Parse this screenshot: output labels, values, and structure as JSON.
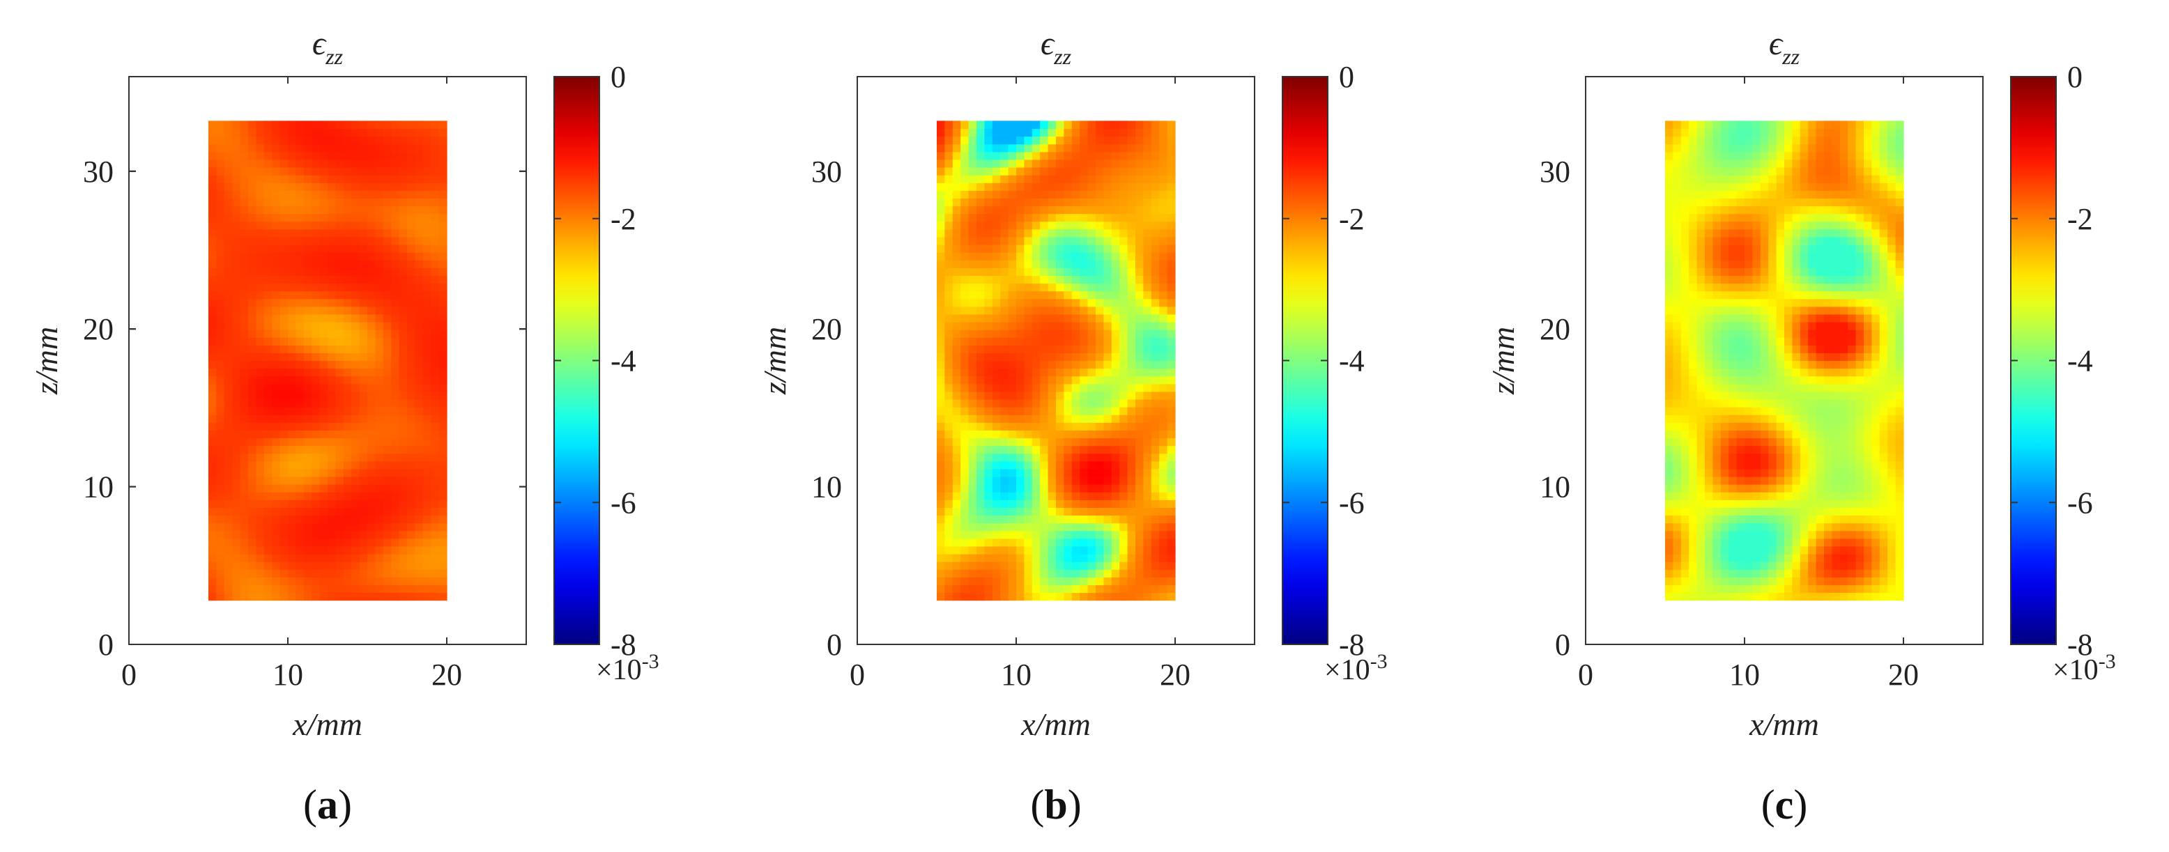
{
  "figure": {
    "panels": [
      {
        "label_open": "(",
        "label_letter": "a",
        "label_close": ")"
      },
      {
        "label_open": "(",
        "label_letter": "b",
        "label_close": ")"
      },
      {
        "label_open": "(",
        "label_letter": "c",
        "label_close": ")"
      }
    ]
  },
  "chart_data": [
    {
      "type": "heatmap",
      "title_symbol": "ϵ",
      "title_subscript": "zz",
      "xlabel": "x/mm",
      "ylabel": "z/mm",
      "xlim": [
        0,
        25
      ],
      "ylim": [
        0,
        36
      ],
      "xticks": [
        "0",
        "10",
        "20"
      ],
      "yticks": [
        "0",
        "10",
        "20",
        "30"
      ],
      "data_extent": {
        "x": [
          5,
          20
        ],
        "z": [
          2.8,
          33.2
        ]
      },
      "colorbar": {
        "range": [
          -8,
          0
        ],
        "ticks": [
          "0",
          "-2",
          "-4",
          "-6",
          "-8"
        ],
        "multiplier": "×10",
        "multiplier_exp": "-3",
        "colormap": "jet"
      },
      "field_mean": -1.5,
      "field_range": [
        -2.8,
        -0.9
      ]
    },
    {
      "type": "heatmap",
      "title_symbol": "ϵ",
      "title_subscript": "zz",
      "xlabel": "x/mm",
      "ylabel": "z/mm",
      "xlim": [
        0,
        25
      ],
      "ylim": [
        0,
        36
      ],
      "xticks": [
        "0",
        "10",
        "20"
      ],
      "yticks": [
        "0",
        "10",
        "20",
        "30"
      ],
      "data_extent": {
        "x": [
          5,
          20
        ],
        "z": [
          2.8,
          33.2
        ]
      },
      "colorbar": {
        "range": [
          -8,
          0
        ],
        "ticks": [
          "0",
          "-2",
          "-4",
          "-6",
          "-8"
        ],
        "multiplier": "×10",
        "multiplier_exp": "-3",
        "colormap": "jet"
      },
      "field_mean": -2.3,
      "field_range": [
        -5.6,
        -1.0
      ]
    },
    {
      "type": "heatmap",
      "title_symbol": "ϵ",
      "title_subscript": "zz",
      "xlabel": "x/mm",
      "ylabel": "z/mm",
      "xlim": [
        0,
        25
      ],
      "ylim": [
        0,
        36
      ],
      "xticks": [
        "0",
        "10",
        "20"
      ],
      "yticks": [
        "0",
        "10",
        "20",
        "30"
      ],
      "data_extent": {
        "x": [
          5,
          20
        ],
        "z": [
          2.8,
          33.2
        ]
      },
      "colorbar": {
        "range": [
          -8,
          0
        ],
        "ticks": [
          "0",
          "-2",
          "-4",
          "-6",
          "-8"
        ],
        "multiplier": "×10",
        "multiplier_exp": "-3",
        "colormap": "jet"
      },
      "field_mean": -3.0,
      "field_range": [
        -4.6,
        -1.2
      ]
    }
  ]
}
